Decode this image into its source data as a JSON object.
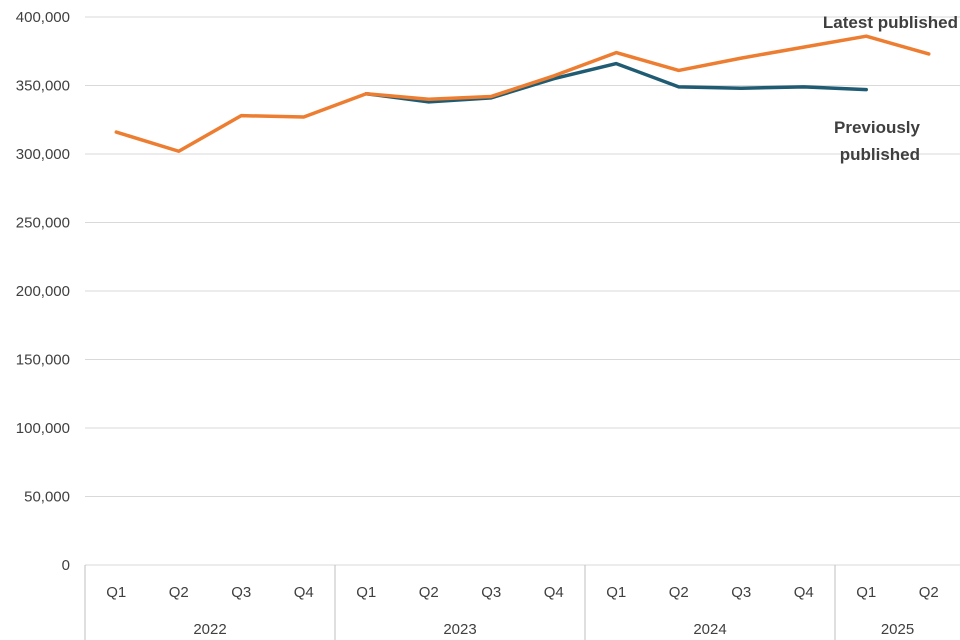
{
  "chart_data": {
    "type": "line",
    "title": "",
    "xlabel": "",
    "ylabel": "",
    "x_labels": [
      "Q1",
      "Q2",
      "Q3",
      "Q4",
      "Q1",
      "Q2",
      "Q3",
      "Q4",
      "Q1",
      "Q2",
      "Q3",
      "Q4",
      "Q1",
      "Q2"
    ],
    "year_groups": [
      {
        "label": "2022",
        "span": 4
      },
      {
        "label": "2023",
        "span": 4
      },
      {
        "label": "2024",
        "span": 4
      },
      {
        "label": "2025",
        "span": 2
      }
    ],
    "series": [
      {
        "id": "latest",
        "name": "Latest published",
        "color": "#ED7D31",
        "values": [
          316000,
          302000,
          328000,
          327000,
          344000,
          340000,
          342000,
          357000,
          374000,
          361000,
          370000,
          378000,
          386000,
          373000
        ]
      },
      {
        "id": "previous",
        "name": "Previously published",
        "color": "#1F5C73",
        "values": [
          null,
          null,
          null,
          null,
          344000,
          338000,
          341000,
          355000,
          366000,
          349000,
          348000,
          349000,
          347000,
          null
        ]
      }
    ],
    "ylim": [
      0,
      400000
    ],
    "ytick_step": 50000,
    "yticks": [
      "0",
      "50,000",
      "100,000",
      "150,000",
      "200,000",
      "250,000",
      "300,000",
      "350,000",
      "400,000"
    ],
    "grid": true,
    "grid_color": "#D9D9D9",
    "separator_color": "#BFBFBF",
    "axis_text_color": "#404040",
    "legend_position": "direct line labels, right side"
  }
}
